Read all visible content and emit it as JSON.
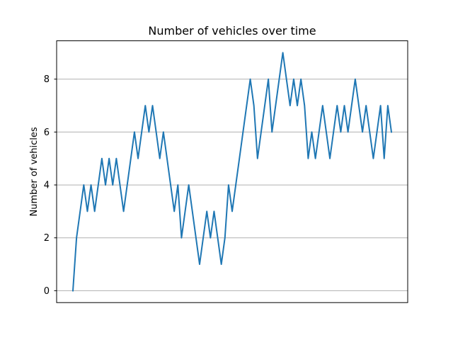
{
  "chart_data": {
    "type": "line",
    "title": "Number of vehicles over time",
    "xlabel": "",
    "ylabel": "Number of vehicles",
    "ylim": [
      -0.45,
      9.45
    ],
    "xlim": [
      -4.5,
      92.5
    ],
    "yticks": [
      0,
      2,
      4,
      6,
      8
    ],
    "ytick_labels": [
      "0",
      "2",
      "4",
      "6",
      "8"
    ],
    "grid": "y",
    "legend": "none",
    "series": [
      {
        "color": "#1f77b4",
        "x": [
          0,
          1,
          2,
          3,
          4,
          5,
          6,
          7,
          8,
          9,
          10,
          11,
          12,
          13,
          14,
          15,
          16,
          17,
          18,
          19,
          20,
          21,
          22,
          23,
          24,
          25,
          26,
          27,
          28,
          29,
          30,
          31,
          32,
          33,
          34,
          35,
          36,
          37,
          38,
          39,
          40,
          41,
          42,
          43,
          44,
          45,
          46,
          47,
          48,
          49,
          50,
          51,
          52,
          53,
          54,
          55,
          56,
          57,
          58,
          59,
          60,
          61,
          62,
          63,
          64,
          65,
          66,
          67,
          68,
          69,
          70,
          71,
          72,
          73,
          74,
          75,
          76,
          77,
          78,
          79,
          80,
          81,
          82,
          83,
          84,
          85,
          86,
          87,
          88
        ],
        "values": [
          0,
          2,
          3,
          4,
          3,
          4,
          3,
          4,
          5,
          4,
          5,
          4,
          5,
          4,
          3,
          4,
          5,
          6,
          5,
          6,
          7,
          6,
          7,
          6,
          5,
          6,
          5,
          4,
          3,
          4,
          2,
          3,
          4,
          3,
          2,
          1,
          2,
          3,
          2,
          3,
          2,
          1,
          2,
          4,
          3,
          4,
          5,
          6,
          7,
          8,
          7,
          5,
          6,
          7,
          8,
          6,
          7,
          8,
          9,
          8,
          7,
          8,
          7,
          8,
          7,
          5,
          6,
          5,
          6,
          7,
          6,
          5,
          6,
          7,
          6,
          7,
          6,
          7,
          8,
          7,
          6,
          7,
          6,
          5,
          6,
          7,
          5,
          7,
          6
        ]
      }
    ]
  }
}
